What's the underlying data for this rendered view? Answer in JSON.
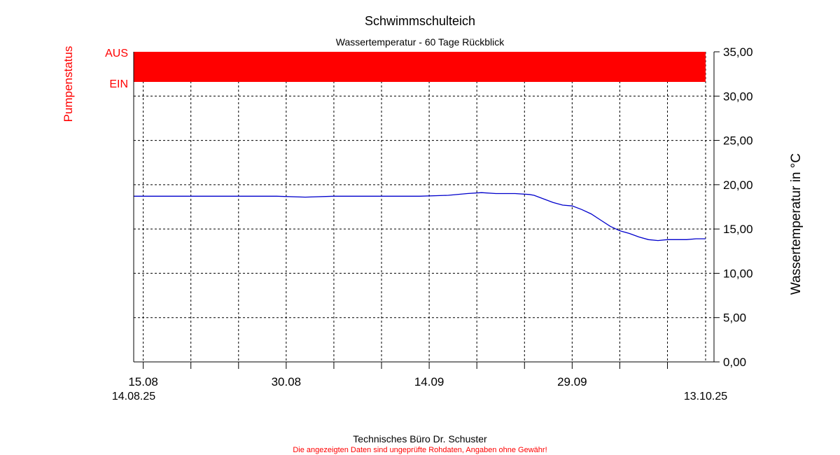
{
  "chart_data": {
    "type": "line",
    "title": "Schwimmschulteich",
    "subtitle": "Wassertemperatur - 60 Tage Rückblick",
    "ylabel_right": "Wassertemperatur in °C",
    "ylabel_left": "Pumpenstatus",
    "pump_states": [
      "AUS",
      "EIN"
    ],
    "pump_status_series": {
      "state": "AUS",
      "from_day": 0,
      "to_day": 60
    },
    "x_range_days": [
      0,
      60
    ],
    "x_start_label": "14.08.25",
    "x_end_label": "13.10.25",
    "x_ticks": [
      {
        "day": 1,
        "label": "15.08"
      },
      {
        "day": 16,
        "label": "30.08"
      },
      {
        "day": 31,
        "label": "14.09"
      },
      {
        "day": 46,
        "label": "29.09"
      }
    ],
    "x_minor_ticks": [
      6,
      11,
      21,
      26,
      36,
      41,
      51,
      56
    ],
    "y_range": [
      0,
      35
    ],
    "y_ticks": [
      "0,00",
      "5,00",
      "10,00",
      "15,00",
      "20,00",
      "25,00",
      "30,00",
      "35,00"
    ],
    "grid": true,
    "series": [
      {
        "color": "#0000cc",
        "points": [
          [
            0,
            18.7
          ],
          [
            3,
            18.7
          ],
          [
            6,
            18.7
          ],
          [
            9,
            18.7
          ],
          [
            12,
            18.7
          ],
          [
            15,
            18.7
          ],
          [
            18,
            18.6
          ],
          [
            21,
            18.7
          ],
          [
            24,
            18.7
          ],
          [
            27,
            18.7
          ],
          [
            30,
            18.7
          ],
          [
            33,
            18.8
          ],
          [
            35,
            19.0
          ],
          [
            36.5,
            19.1
          ],
          [
            38,
            19.0
          ],
          [
            40,
            19.0
          ],
          [
            41.5,
            18.9
          ],
          [
            42,
            18.8
          ],
          [
            43,
            18.4
          ],
          [
            44,
            18.0
          ],
          [
            45,
            17.7
          ],
          [
            46,
            17.6
          ],
          [
            47,
            17.2
          ],
          [
            48,
            16.7
          ],
          [
            49,
            16.0
          ],
          [
            50,
            15.3
          ],
          [
            51,
            14.8
          ],
          [
            52,
            14.5
          ],
          [
            53,
            14.1
          ],
          [
            54,
            13.8
          ],
          [
            55,
            13.7
          ],
          [
            56,
            13.8
          ],
          [
            57,
            13.8
          ],
          [
            58,
            13.8
          ],
          [
            59,
            13.9
          ],
          [
            60,
            13.9
          ]
        ]
      }
    ]
  },
  "footer": {
    "company": "Technisches Büro Dr. Schuster",
    "disclaimer": "Die angezeigten Daten sind ungeprüfte Rohdaten, Angaben ohne Gewähr!"
  },
  "colors": {
    "pump": "#ff0000",
    "line": "#0000cc",
    "axis": "#000000",
    "grid": "#000000",
    "disclaimer": "#ff0000"
  }
}
